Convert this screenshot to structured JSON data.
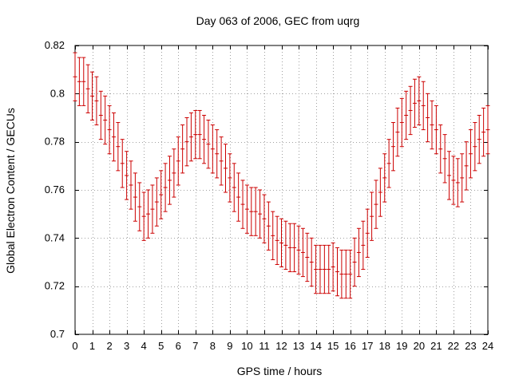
{
  "chart_data": {
    "type": "scatter",
    "title": "Day 063 of 2006, GEC from uqrg",
    "xlabel": "GPS time / hours",
    "ylabel": "Global Electron Content / GECUs",
    "xlim": [
      0,
      24
    ],
    "ylim": [
      0.7,
      0.82
    ],
    "xticks": [
      0,
      1,
      2,
      3,
      4,
      5,
      6,
      7,
      8,
      9,
      10,
      11,
      12,
      13,
      14,
      15,
      16,
      17,
      18,
      19,
      20,
      21,
      22,
      23,
      24
    ],
    "xtick_labels": [
      "0",
      "1",
      "2",
      "3",
      "4",
      "5",
      "6",
      "7",
      "8",
      "9",
      "10",
      "11",
      "12",
      "13",
      "14",
      "15",
      "16",
      "17",
      "18",
      "19",
      "20",
      "21",
      "22",
      "23",
      "24"
    ],
    "yticks": [
      0.7,
      0.72,
      0.74,
      0.76,
      0.78,
      0.8,
      0.82
    ],
    "ytick_labels": [
      "0.7",
      "0.72",
      "0.74",
      "0.76",
      "0.78",
      "0.8",
      "0.82"
    ],
    "grid": true,
    "series": [
      {
        "name": "GEC",
        "color": "#cc0000",
        "error": 0.01,
        "x": [
          0,
          0.25,
          0.5,
          0.75,
          1,
          1.25,
          1.5,
          1.75,
          2,
          2.25,
          2.5,
          2.75,
          3,
          3.25,
          3.5,
          3.75,
          4,
          4.25,
          4.5,
          4.75,
          5,
          5.25,
          5.5,
          5.75,
          6,
          6.25,
          6.5,
          6.75,
          7,
          7.25,
          7.5,
          7.75,
          8,
          8.25,
          8.5,
          8.75,
          9,
          9.25,
          9.5,
          9.75,
          10,
          10.25,
          10.5,
          10.75,
          11,
          11.25,
          11.5,
          11.75,
          12,
          12.25,
          12.5,
          12.75,
          13,
          13.25,
          13.5,
          13.75,
          14,
          14.25,
          14.5,
          14.75,
          15,
          15.25,
          15.5,
          15.75,
          16,
          16.25,
          16.5,
          16.75,
          17,
          17.25,
          17.5,
          17.75,
          18,
          18.25,
          18.5,
          18.75,
          19,
          19.25,
          19.5,
          19.75,
          20,
          20.25,
          20.5,
          20.75,
          21,
          21.25,
          21.5,
          21.75,
          22,
          22.25,
          22.5,
          22.75,
          23,
          23.25,
          23.5,
          23.75,
          24
        ],
        "y": [
          0.807,
          0.805,
          0.805,
          0.802,
          0.799,
          0.797,
          0.791,
          0.789,
          0.785,
          0.782,
          0.778,
          0.771,
          0.766,
          0.762,
          0.757,
          0.753,
          0.749,
          0.75,
          0.752,
          0.755,
          0.758,
          0.761,
          0.764,
          0.767,
          0.772,
          0.777,
          0.78,
          0.782,
          0.783,
          0.783,
          0.781,
          0.779,
          0.777,
          0.775,
          0.772,
          0.769,
          0.765,
          0.761,
          0.757,
          0.754,
          0.752,
          0.751,
          0.751,
          0.75,
          0.748,
          0.745,
          0.741,
          0.739,
          0.738,
          0.737,
          0.736,
          0.736,
          0.735,
          0.734,
          0.732,
          0.73,
          0.727,
          0.727,
          0.727,
          0.727,
          0.728,
          0.726,
          0.725,
          0.725,
          0.725,
          0.73,
          0.734,
          0.737,
          0.742,
          0.749,
          0.754,
          0.759,
          0.765,
          0.771,
          0.778,
          0.784,
          0.788,
          0.791,
          0.793,
          0.796,
          0.797,
          0.795,
          0.79,
          0.787,
          0.785,
          0.777,
          0.773,
          0.766,
          0.764,
          0.763,
          0.765,
          0.77,
          0.775,
          0.778,
          0.781,
          0.784,
          0.785
        ]
      }
    ]
  }
}
